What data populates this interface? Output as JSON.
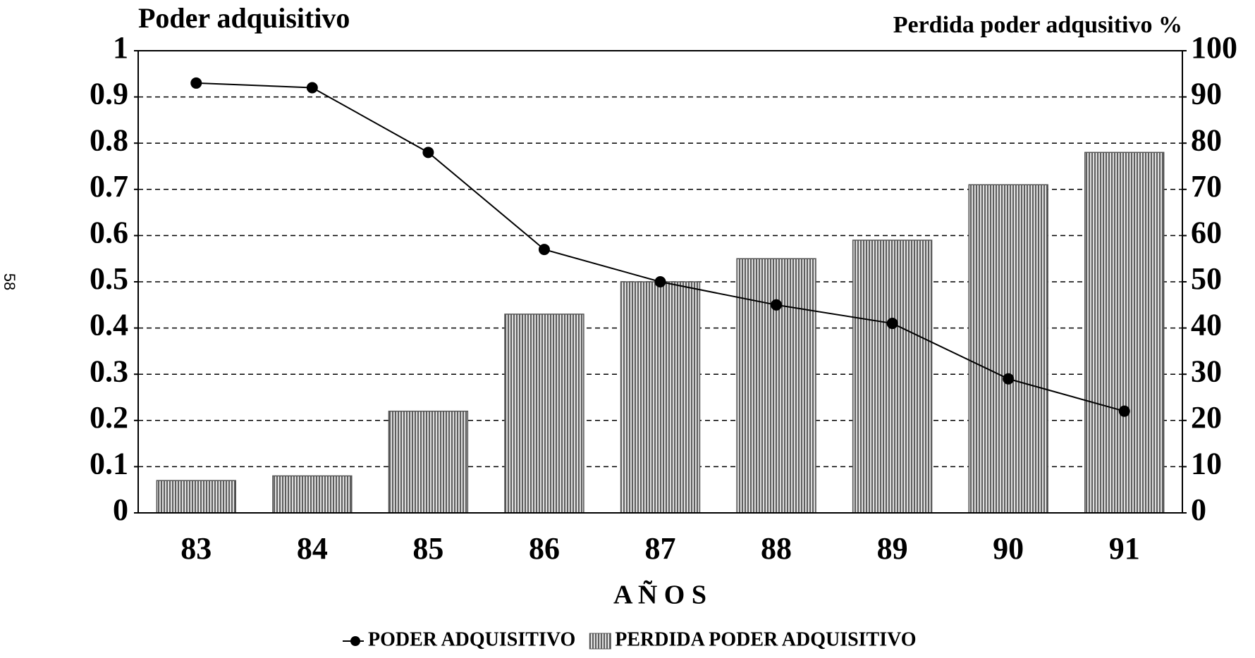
{
  "page_number": "58",
  "chart_data": {
    "type": "bar",
    "title": "Poder adquisitivo",
    "y2_title": "Perdida poder adqusitivo %",
    "x_label": "A Ñ O S",
    "categories": [
      "83",
      "84",
      "85",
      "86",
      "87",
      "88",
      "89",
      "90",
      "91"
    ],
    "series": [
      {
        "name": "PODER ADQUISITIVO",
        "type": "line",
        "color": "#000000",
        "values": [
          0.93,
          0.92,
          0.78,
          0.57,
          0.5,
          0.45,
          0.41,
          0.29,
          0.22
        ]
      },
      {
        "name": "PERDIDA PODER ADQUISITIVO",
        "type": "bar",
        "axis": "y2",
        "color": "#555555",
        "values": [
          7,
          8,
          22,
          43,
          50,
          55,
          59,
          71,
          78
        ]
      }
    ],
    "ylim": [
      0,
      1
    ],
    "yticks": [
      0,
      0.1,
      0.2,
      0.3,
      0.4,
      0.5,
      0.6,
      0.7,
      0.8,
      0.9,
      1
    ],
    "y2lim": [
      0,
      100
    ],
    "y2ticks": [
      0,
      10,
      20,
      30,
      40,
      50,
      60,
      70,
      80,
      90,
      100
    ],
    "grid": true,
    "legend": "bottom"
  }
}
